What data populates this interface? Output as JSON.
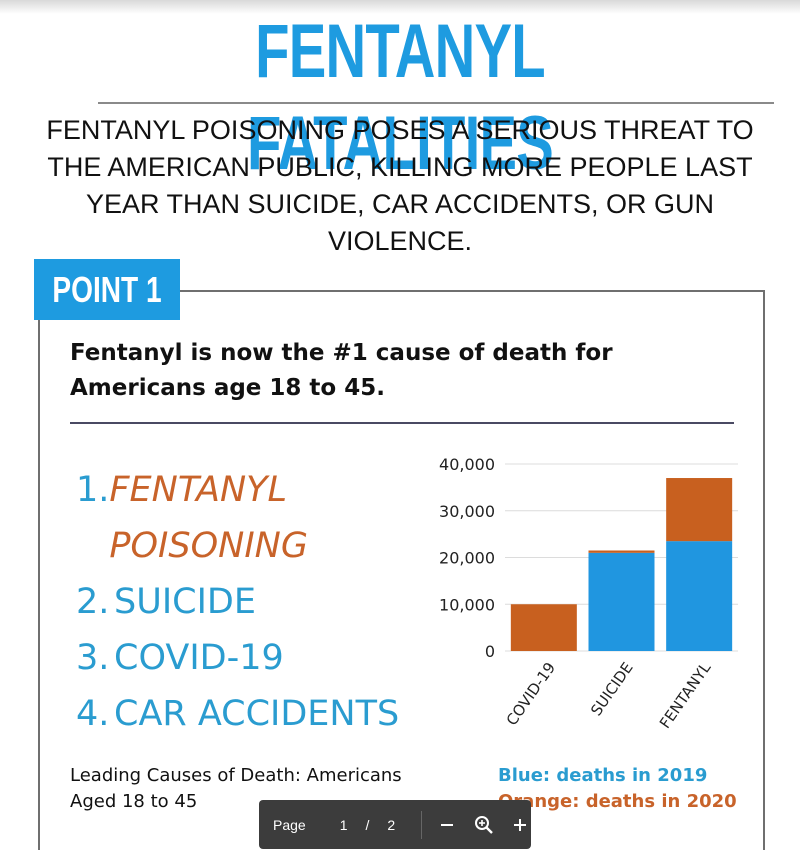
{
  "title": "FENTANYL FATALITIES",
  "intro": "FENTANYL POISONING POSES A SERIOUS THREAT TO THE AMERICAN PUBLIC, KILLING MORE PEOPLE LAST YEAR THAN SUICIDE, CAR ACCIDENTS, OR GUN VIOLENCE.",
  "point_label": "POINT 1",
  "statement": "Fentanyl is now the #1 cause of death for Americans age 18 to 45.",
  "causes": [
    {
      "num": "1.",
      "text": "FENTANYL POISONING"
    },
    {
      "num": "2.",
      "text": "SUICIDE"
    },
    {
      "num": "3.",
      "text": "COVID-19"
    },
    {
      "num": "4.",
      "text": "CAR ACCIDENTS"
    }
  ],
  "caption": "Leading Causes of Death: Americans Aged 18 to 45",
  "legend": {
    "blue": "Blue: deaths in 2019",
    "orange": "Orange: deaths in 2020"
  },
  "colors": {
    "blue": "#2a9cd0",
    "orange": "#c8632a",
    "title_blue": "#1e9be0"
  },
  "chart_data": {
    "type": "bar",
    "stacked": true,
    "categories": [
      "COVID-19",
      "SUICIDE",
      "FENTANYL"
    ],
    "series": [
      {
        "name": "Blue: deaths in 2019",
        "color": "#2096e0",
        "values": [
          0,
          21000,
          23500
        ]
      },
      {
        "name": "Orange: deaths in 2020",
        "color": "#c8601f",
        "values": [
          10000,
          500,
          13500
        ]
      }
    ],
    "yticks": [
      "0",
      "10,000",
      "20,000",
      "30,000",
      "40,000"
    ],
    "ylim": [
      0,
      40000
    ],
    "grid": true
  },
  "pager": {
    "label": "Page",
    "current": "1",
    "separator": "/",
    "total": "2"
  },
  "icons": {
    "zoom_out": "minus-icon",
    "zoom_in": "zoom-in-icon",
    "add": "plus-icon"
  }
}
